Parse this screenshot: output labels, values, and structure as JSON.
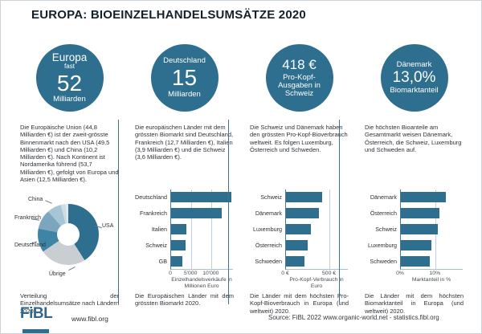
{
  "page": {
    "title": "EUROPA: BIOEINZELHANDELSUMSÄTZE 2020",
    "footer": {
      "logo": "FiBL",
      "website": "www.fibl.org",
      "source": "Source: FiBL 2022 www.organic-world.net - statistics.fibl.org"
    }
  },
  "colors": {
    "accent_teal": "#2e6e8e",
    "separator": "#3c7190"
  },
  "columns": [
    {
      "badge": {
        "lines": [
          {
            "t": "Europa",
            "s": "md"
          },
          {
            "t": "fast",
            "s": "xs"
          },
          {
            "t": "52",
            "s": "xl"
          },
          {
            "t": "Milliarden",
            "s": "sm"
          }
        ]
      },
      "description": "Die Europäische Union (44,8 Milliarden €) ist der zweit-grösste Binnenmarkt nach den USA (49,5 Milliarden €) und China (10,2 Milliarden €). Nach Kontinent ist Nordamerika führend (53,7 Milliarden €), gefolgt von Europa und Asien (12,5 Milliarden €).",
      "caption": "Verteilung der Einzelhandelsumsätze nach Ländern 2020."
    },
    {
      "badge": {
        "lines": [
          {
            "t": "Deutschland",
            "s": "sm"
          },
          {
            "t": "15",
            "s": "xl"
          },
          {
            "t": "Milliarden",
            "s": "sm"
          }
        ]
      },
      "description": "Die europäischen Länder mit dem grössten Biomarkt sind Deutschland, Frankreich (12,7 Milliarden €), Italien (3,9 Milliarden €) und die Schweiz (3,6 Milliarden €).",
      "caption": "Die Europäischen Länder mit dem grössten Biomarkt 2020."
    },
    {
      "badge": {
        "lines": [
          {
            "t": "418 €",
            "s": "lg"
          },
          {
            "t": "Pro-Kopf-",
            "s": "sm"
          },
          {
            "t": "Ausgaben in",
            "s": "sm"
          },
          {
            "t": "Schweiz",
            "s": "sm"
          }
        ]
      },
      "description": "Die Schweiz und Dänemark haben den grössten Pro-Kopf-Bioverbrauch weltweit. Es folgen Luxemburg, Österreich und Schweden.",
      "caption": "Die Länder mit dem höchsten Pro-Kopf-Bioverbrauch in Europa (und weltweit) 2020."
    },
    {
      "badge": {
        "lines": [
          {
            "t": "Dänemark",
            "s": "sm"
          },
          {
            "t": "13,0%",
            "s": "lg2"
          },
          {
            "t": "Biomarktanteil",
            "s": "sm"
          }
        ]
      },
      "description": "Die höchsten Bioanteile am Gesamtmarkt weisen Dänemark, Österreich, die Schweiz, Luxemburg und Schweden auf.",
      "caption": "Die Länder mit dem höchsten Biomarktanteil in Europa (und weltweit) 2020."
    }
  ],
  "chart_data": [
    {
      "type": "pie",
      "title": "Verteilung der Einzelhandelsumsätze nach Ländern 2020",
      "donut": true,
      "segments": [
        {
          "label": "USA",
          "share_pct": 41.0,
          "color": "#2e6e8e"
        },
        {
          "label": "Übrige",
          "share_pct": 24.5,
          "color": "#c9ced3"
        },
        {
          "label": "Deutschland",
          "share_pct": 12.5,
          "color": "#3e84a6"
        },
        {
          "label": "Frankreich",
          "share_pct": 10.5,
          "color": "#7ca6bd"
        },
        {
          "label": "China",
          "share_pct": 7.5,
          "color": "#a6c5d5"
        },
        {
          "label": "",
          "share_pct": 2.5,
          "color": "#cadde8"
        },
        {
          "label": "",
          "share_pct": 1.5,
          "color": "#e4e9ed"
        }
      ]
    },
    {
      "type": "bar",
      "orientation": "horizontal",
      "categories": [
        "Deutschland",
        "Frankreich",
        "Italien",
        "Schweiz",
        "GB"
      ],
      "values": [
        15000,
        12700,
        3900,
        3600,
        2800
      ],
      "xmax": 15500,
      "ticks": [
        {
          "v": 0,
          "label": "0"
        },
        {
          "v": 5000,
          "label": "5'000"
        },
        {
          "v": 10000,
          "label": "10'000"
        }
      ],
      "xlabel": "Einzelhandelsverkäufe in Millionen Euro",
      "bar_color": "#2e6e8e"
    },
    {
      "type": "bar",
      "orientation": "horizontal",
      "categories": [
        "Schweiz",
        "Dänemark",
        "Luxemburg",
        "Österreich",
        "Schweden"
      ],
      "values": [
        418,
        384,
        285,
        254,
        212
      ],
      "xmax": 715,
      "ticks": [
        {
          "v": 0,
          "label": "0 €"
        },
        {
          "v": 500,
          "label": "500 €"
        }
      ],
      "xlabel": "Pro-Kopf-Verbrauch in Euro",
      "bar_color": "#2e6e8e"
    },
    {
      "type": "bar",
      "orientation": "horizontal",
      "categories": [
        "Dänemark",
        "Österreich",
        "Schweiz",
        "Luxemburg",
        "Schweden"
      ],
      "values": [
        13.0,
        11.3,
        10.8,
        8.9,
        8.5
      ],
      "xmax": 18,
      "ticks": [
        {
          "v": 0,
          "label": "0%"
        },
        {
          "v": 10,
          "label": "10%"
        }
      ],
      "xlabel": "Marktanteil in %",
      "bar_color": "#2e6e8e"
    }
  ]
}
